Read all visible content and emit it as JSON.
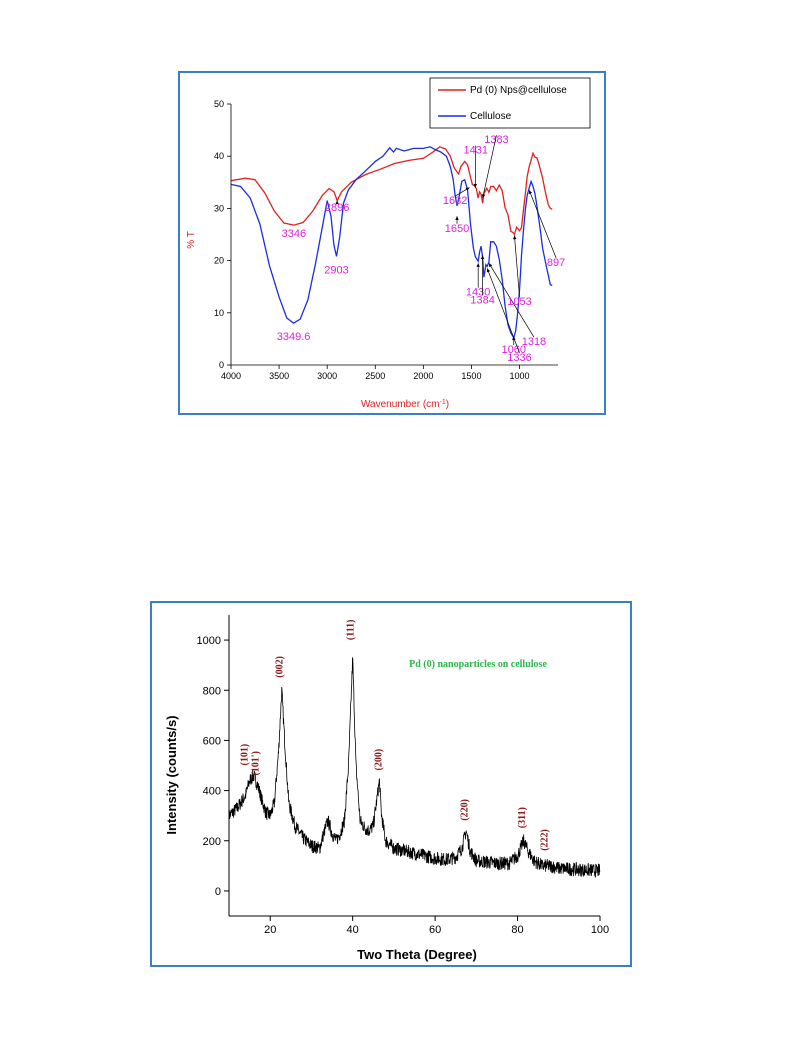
{
  "chart_data": [
    {
      "type": "line",
      "xlabel": "Wavenumber (cm",
      "xlabel_sup": "-1",
      "xlabel_end": ")",
      "ylabel": "% T",
      "xlim": [
        4000,
        600
      ],
      "ylim": [
        0,
        50
      ],
      "x_ticks": [
        4000,
        3500,
        3000,
        2500,
        2000,
        1500,
        1000
      ],
      "y_ticks": [
        0,
        10,
        20,
        30,
        40,
        50
      ],
      "legend_position": "top-right",
      "colors": {
        "axis_label": "#e02020",
        "annotation": "#e020e0"
      },
      "series": [
        {
          "name": "Pd (0) Nps@cellulose",
          "color": "#e02020",
          "points": [
            [
              4000,
              35.3
            ],
            [
              3850,
              35.8
            ],
            [
              3750,
              35.5
            ],
            [
              3650,
              33
            ],
            [
              3550,
              29.5
            ],
            [
              3450,
              27.2
            ],
            [
              3346,
              26.8
            ],
            [
              3250,
              27.3
            ],
            [
              3150,
              29.5
            ],
            [
              3050,
              32.5
            ],
            [
              2980,
              33.8
            ],
            [
              2930,
              33.2
            ],
            [
              2896,
              31.5
            ],
            [
              2850,
              33.2
            ],
            [
              2750,
              35
            ],
            [
              2600,
              36.5
            ],
            [
              2450,
              37.5
            ],
            [
              2300,
              38.6
            ],
            [
              2150,
              39.2
            ],
            [
              2000,
              39.6
            ],
            [
              1900,
              40.8
            ],
            [
              1830,
              41.8
            ],
            [
              1770,
              41.4
            ],
            [
              1720,
              40
            ],
            [
              1680,
              37.8
            ],
            [
              1650,
              37
            ],
            [
              1632,
              36.6
            ],
            [
              1610,
              38
            ],
            [
              1570,
              39
            ],
            [
              1540,
              38.3
            ],
            [
              1510,
              36
            ],
            [
              1490,
              34.5
            ],
            [
              1470,
              34
            ],
            [
              1450,
              33.5
            ],
            [
              1431,
              32
            ],
            [
              1415,
              33.5
            ],
            [
              1400,
              33
            ],
            [
              1383,
              31
            ],
            [
              1370,
              32.5
            ],
            [
              1340,
              33.5
            ],
            [
              1318,
              33
            ],
            [
              1300,
              34.5
            ],
            [
              1270,
              34.6
            ],
            [
              1240,
              33.5
            ],
            [
              1210,
              34.2
            ],
            [
              1180,
              33
            ],
            [
              1150,
              30
            ],
            [
              1120,
              29
            ],
            [
              1090,
              26
            ],
            [
              1070,
              25.6
            ],
            [
              1053,
              24.8
            ],
            [
              1030,
              26
            ],
            [
              1000,
              25.5
            ],
            [
              980,
              26.5
            ],
            [
              960,
              30
            ],
            [
              940,
              33
            ],
            [
              920,
              36
            ],
            [
              900,
              37.5
            ],
            [
              880,
              39
            ],
            [
              860,
              40.7
            ],
            [
              840,
              40.2
            ],
            [
              820,
              40
            ],
            [
              800,
              38.5
            ],
            [
              780,
              36.8
            ],
            [
              760,
              35.5
            ],
            [
              740,
              34
            ],
            [
              720,
              32.5
            ],
            [
              700,
              31
            ],
            [
              680,
              30
            ],
            [
              660,
              29.5
            ]
          ]
        },
        {
          "name": "Cellulose",
          "color": "#1a2ee0",
          "points": [
            [
              4000,
              34.6
            ],
            [
              3900,
              34.2
            ],
            [
              3800,
              32
            ],
            [
              3700,
              27
            ],
            [
              3600,
              19
            ],
            [
              3500,
              13
            ],
            [
              3420,
              9
            ],
            [
              3349.6,
              8
            ],
            [
              3280,
              8.8
            ],
            [
              3200,
              12.5
            ],
            [
              3120,
              19.5
            ],
            [
              3050,
              26.5
            ],
            [
              3000,
              31.5
            ],
            [
              2960,
              28.5
            ],
            [
              2930,
              23
            ],
            [
              2903,
              20.8
            ],
            [
              2870,
              24.5
            ],
            [
              2830,
              31
            ],
            [
              2780,
              33.5
            ],
            [
              2700,
              35.5
            ],
            [
              2600,
              37.2
            ],
            [
              2500,
              39
            ],
            [
              2420,
              40
            ],
            [
              2350,
              41.6
            ],
            [
              2310,
              40.8
            ],
            [
              2280,
              41.5
            ],
            [
              2200,
              41
            ],
            [
              2100,
              41.5
            ],
            [
              2000,
              41.5
            ],
            [
              1930,
              41.8
            ],
            [
              1880,
              41.3
            ],
            [
              1820,
              40.8
            ],
            [
              1760,
              40
            ],
            [
              1720,
              38
            ],
            [
              1690,
              35.5
            ],
            [
              1670,
              32.5
            ],
            [
              1650,
              30.5
            ],
            [
              1630,
              32
            ],
            [
              1600,
              35.2
            ],
            [
              1570,
              35.5
            ],
            [
              1540,
              33.5
            ],
            [
              1510,
              27
            ],
            [
              1480,
              22.5
            ],
            [
              1460,
              20.5
            ],
            [
              1430,
              19.5
            ],
            [
              1415,
              21.5
            ],
            [
              1400,
              23
            ],
            [
              1384,
              21
            ],
            [
              1370,
              17
            ],
            [
              1350,
              19
            ],
            [
              1336,
              18.5
            ],
            [
              1318,
              19.5
            ],
            [
              1300,
              23.8
            ],
            [
              1270,
              24
            ],
            [
              1240,
              23
            ],
            [
              1210,
              20
            ],
            [
              1180,
              16
            ],
            [
              1150,
              11
            ],
            [
              1120,
              7.8
            ],
            [
              1090,
              6.5
            ],
            [
              1060,
              5.5
            ],
            [
              1040,
              6.5
            ],
            [
              1020,
              9.5
            ],
            [
              1000,
              14
            ],
            [
              980,
              21
            ],
            [
              960,
              26
            ],
            [
              940,
              30
            ],
            [
              920,
              32.5
            ],
            [
              900,
              33.5
            ],
            [
              880,
              34.8
            ],
            [
              860,
              34.2
            ],
            [
              840,
              33.2
            ],
            [
              820,
              31
            ],
            [
              800,
              28
            ],
            [
              780,
              25
            ],
            [
              760,
              22
            ],
            [
              740,
              20.5
            ],
            [
              720,
              19
            ],
            [
              700,
              17.5
            ],
            [
              680,
              15.5
            ],
            [
              660,
              15
            ]
          ]
        }
      ],
      "annotations": [
        {
          "label": "3346"
        },
        {
          "label": "2896"
        },
        {
          "label": "2903"
        },
        {
          "label": "3349.6"
        },
        {
          "label": "1632"
        },
        {
          "label": "1650"
        },
        {
          "label": "1431"
        },
        {
          "label": "1383"
        },
        {
          "label": "1430"
        },
        {
          "label": "1384"
        },
        {
          "label": "1060"
        },
        {
          "label": "1336"
        },
        {
          "label": "1318"
        },
        {
          "label": "1053"
        },
        {
          "label": "897"
        }
      ]
    },
    {
      "type": "line",
      "xlabel": "Two Theta (Degree)",
      "ylabel": "Intensity (counts/s)",
      "xlim": [
        10,
        100
      ],
      "ylim": [
        -100,
        1100
      ],
      "x_ticks": [
        20,
        40,
        60,
        80,
        100
      ],
      "y_ticks": [
        0,
        200,
        400,
        600,
        800,
        1000
      ],
      "series": [
        {
          "name": "Pd (0) nanoparticles on cellulose",
          "color": "#000000"
        }
      ],
      "profile": [
        [
          10,
          300
        ],
        [
          12,
          330
        ],
        [
          14,
          380
        ],
        [
          15,
          440
        ],
        [
          16,
          460
        ],
        [
          17,
          420
        ],
        [
          18,
          360
        ],
        [
          19,
          310
        ],
        [
          20,
          300
        ],
        [
          21,
          350
        ],
        [
          22,
          550
        ],
        [
          22.8,
          800
        ],
        [
          23.5,
          600
        ],
        [
          24.5,
          350
        ],
        [
          26,
          260
        ],
        [
          28,
          210
        ],
        [
          30,
          180
        ],
        [
          32,
          170
        ],
        [
          33,
          230
        ],
        [
          34,
          280
        ],
        [
          35,
          230
        ],
        [
          36,
          200
        ],
        [
          37,
          230
        ],
        [
          38,
          280
        ],
        [
          39,
          500
        ],
        [
          40,
          930
        ],
        [
          40.8,
          500
        ],
        [
          41.8,
          280
        ],
        [
          43,
          250
        ],
        [
          44,
          240
        ],
        [
          45,
          260
        ],
        [
          46,
          380
        ],
        [
          46.5,
          440
        ],
        [
          47,
          300
        ],
        [
          48,
          200
        ],
        [
          50,
          170
        ],
        [
          55,
          150
        ],
        [
          60,
          130
        ],
        [
          63,
          125
        ],
        [
          65,
          135
        ],
        [
          66.5,
          170
        ],
        [
          67.5,
          240
        ],
        [
          68.5,
          160
        ],
        [
          70,
          120
        ],
        [
          75,
          110
        ],
        [
          78,
          110
        ],
        [
          80,
          140
        ],
        [
          81.5,
          200
        ],
        [
          82.5,
          160
        ],
        [
          84,
          120
        ],
        [
          86,
          100
        ],
        [
          88,
          100
        ],
        [
          90,
          90
        ],
        [
          95,
          85
        ],
        [
          100,
          80
        ]
      ],
      "peak_labels": [
        {
          "label": "(101)",
          "x": 14.5,
          "y": 500
        },
        {
          "label": "(101')",
          "x": 17.2,
          "y": 460
        },
        {
          "label": "(002)",
          "x": 23,
          "y": 850
        },
        {
          "label": "(111)",
          "x": 40.2,
          "y": 1000
        },
        {
          "label": "(200)",
          "x": 47,
          "y": 480
        },
        {
          "label": "(220)",
          "x": 67.8,
          "y": 280
        },
        {
          "label": "(311)",
          "x": 81.8,
          "y": 250
        },
        {
          "label": "(222)",
          "x": 87.3,
          "y": 160
        }
      ],
      "colors": {
        "series_label": "#2db44a",
        "peak_label": "#8b1a1a"
      }
    }
  ]
}
